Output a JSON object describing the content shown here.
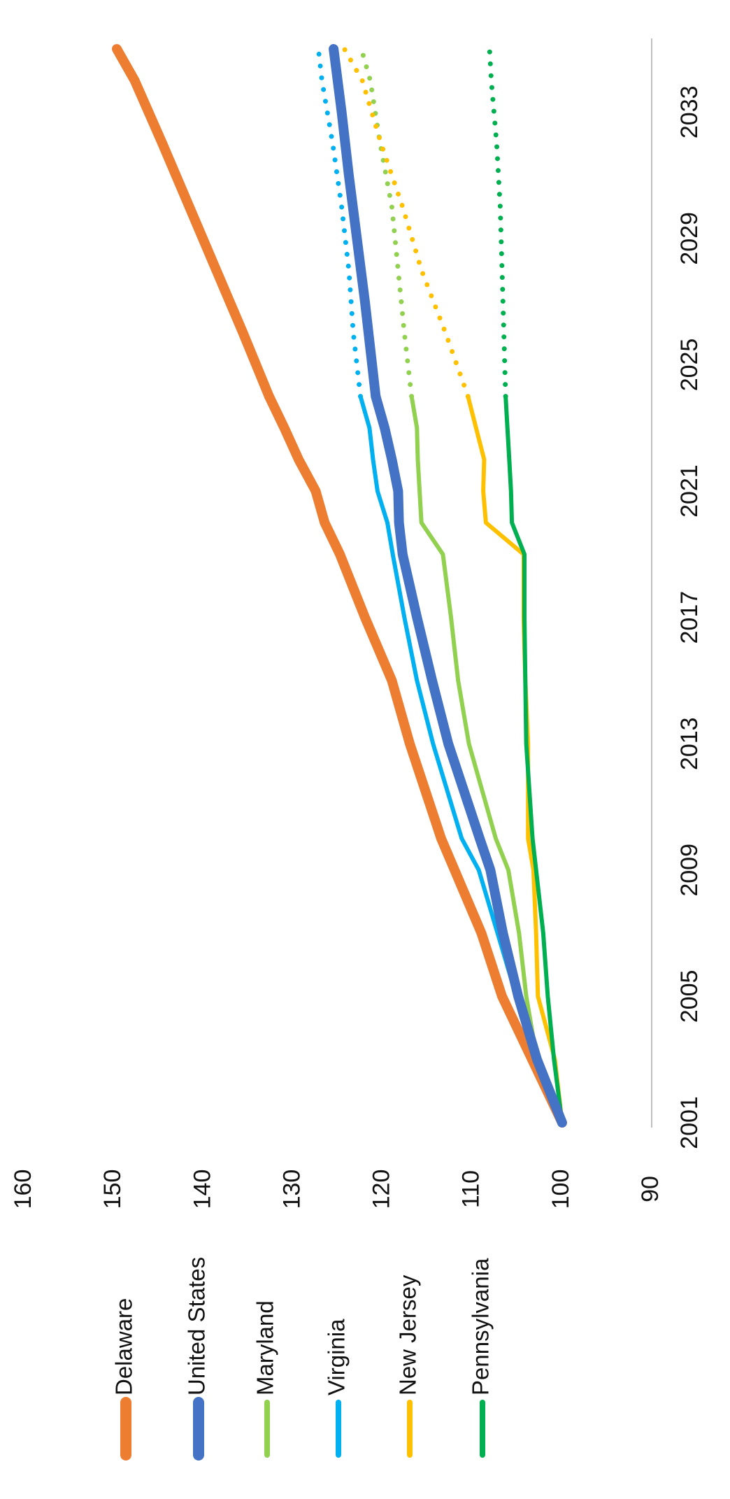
{
  "chart_data": {
    "type": "line",
    "title": "",
    "xlabel": "",
    "ylabel": "",
    "orientation": "rotated-90-clockwise",
    "xlim": [
      2001,
      2035
    ],
    "ylim": [
      90,
      160
    ],
    "x_ticks": [
      2001,
      2005,
      2009,
      2013,
      2017,
      2021,
      2025,
      2029,
      2033
    ],
    "y_ticks": [
      90,
      100,
      110,
      120,
      130,
      140,
      150,
      160
    ],
    "grid": false,
    "legend": {
      "placement": "left"
    },
    "series": [
      {
        "name": "Delaware",
        "color": "#ED7D31",
        "style": "thick",
        "actual": [
          [
            2001,
            100
          ],
          [
            2005,
            106.7
          ],
          [
            2007,
            109
          ],
          [
            2009,
            112
          ],
          [
            2010,
            113.5
          ],
          [
            2013,
            117
          ],
          [
            2015,
            119
          ],
          [
            2017,
            122
          ],
          [
            2019,
            124.8
          ],
          [
            2020,
            126.5
          ],
          [
            2021,
            127.5
          ],
          [
            2022,
            129.4
          ],
          [
            2023,
            131
          ],
          [
            2024,
            132.7
          ]
        ],
        "projection": [
          [
            2024,
            132.7
          ],
          [
            2026,
            135.6
          ],
          [
            2028,
            138.6
          ],
          [
            2030,
            141.6
          ],
          [
            2032,
            144.6
          ],
          [
            2034,
            147.7
          ],
          [
            2035,
            149.7
          ]
        ],
        "projection_style": "solid"
      },
      {
        "name": "United States",
        "color": "#4472C4",
        "style": "thick",
        "actual": [
          [
            2001,
            100
          ],
          [
            2003,
            102.8
          ],
          [
            2005,
            104.9
          ],
          [
            2007,
            106.6
          ],
          [
            2009,
            108
          ],
          [
            2010,
            109.2
          ],
          [
            2013,
            112.7
          ],
          [
            2015,
            114.5
          ],
          [
            2017,
            116.2
          ],
          [
            2019,
            117.8
          ],
          [
            2020,
            118.2
          ],
          [
            2021,
            118.3
          ],
          [
            2022,
            119
          ],
          [
            2023,
            119.8
          ],
          [
            2024,
            120.8
          ]
        ],
        "projection": [
          [
            2024,
            120.8
          ],
          [
            2025,
            121.2
          ],
          [
            2027,
            122
          ],
          [
            2029,
            122.9
          ],
          [
            2031,
            123.8
          ],
          [
            2033,
            124.6
          ],
          [
            2035,
            125.5
          ]
        ],
        "projection_style": "solid"
      },
      {
        "name": "Maryland",
        "color": "#92D050",
        "style": "thin",
        "actual": [
          [
            2001,
            100
          ],
          [
            2003,
            102.8
          ],
          [
            2005,
            104
          ],
          [
            2007,
            104.8
          ],
          [
            2009,
            106
          ],
          [
            2010,
            107.4
          ],
          [
            2013,
            110.4
          ],
          [
            2015,
            111.6
          ],
          [
            2017,
            112.4
          ],
          [
            2019,
            113.3
          ],
          [
            2020,
            115.7
          ],
          [
            2021,
            115.9
          ],
          [
            2022,
            116.1
          ],
          [
            2023,
            116.2
          ],
          [
            2024,
            116.8
          ]
        ],
        "projection": [
          [
            2024,
            116.8
          ],
          [
            2026,
            117.6
          ],
          [
            2028,
            118.3
          ],
          [
            2030,
            119
          ],
          [
            2032,
            120.3
          ],
          [
            2034,
            121.4
          ],
          [
            2035,
            122.4
          ]
        ],
        "projection_style": "dotted"
      },
      {
        "name": "Virginia",
        "color": "#00B0F0",
        "style": "thin",
        "actual": [
          [
            2001,
            100
          ],
          [
            2003,
            102.9
          ],
          [
            2005,
            105.1
          ],
          [
            2007,
            107.2
          ],
          [
            2009,
            109.3
          ],
          [
            2010,
            111.2
          ],
          [
            2013,
            114.4
          ],
          [
            2015,
            116.2
          ],
          [
            2017,
            117.6
          ],
          [
            2019,
            118.9
          ],
          [
            2020,
            119.5
          ],
          [
            2021,
            120.6
          ],
          [
            2022,
            121.1
          ],
          [
            2023,
            121.5
          ],
          [
            2024,
            122.5
          ]
        ],
        "projection": [
          [
            2024,
            122.5
          ],
          [
            2026,
            123.3
          ],
          [
            2028,
            123.8
          ],
          [
            2030,
            124.6
          ],
          [
            2032,
            125.6
          ],
          [
            2034,
            126.8
          ],
          [
            2035,
            127.2
          ]
        ],
        "projection_style": "dotted"
      },
      {
        "name": "New Jersey",
        "color": "#FFC000",
        "style": "thin",
        "actual": [
          [
            2001,
            100
          ],
          [
            2003,
            100.8
          ],
          [
            2005,
            102.7
          ],
          [
            2007,
            102.9
          ],
          [
            2009,
            103.2
          ],
          [
            2010,
            103.8
          ],
          [
            2013,
            103.8
          ],
          [
            2015,
            104.1
          ],
          [
            2017,
            104.3
          ],
          [
            2019,
            104.3
          ],
          [
            2020,
            108.5
          ],
          [
            2021,
            108.8
          ],
          [
            2022,
            108.7
          ],
          [
            2023,
            109.6
          ],
          [
            2024,
            110.5
          ]
        ],
        "projection": [
          [
            2024,
            110.5
          ],
          [
            2026,
            113
          ],
          [
            2028,
            115.7
          ],
          [
            2030,
            117.8
          ],
          [
            2032,
            120.2
          ],
          [
            2034,
            122.3
          ],
          [
            2035,
            124.3
          ]
        ],
        "projection_style": "dotted"
      },
      {
        "name": "Pennsylvania",
        "color": "#00B050",
        "style": "thin",
        "actual": [
          [
            2001,
            100
          ],
          [
            2003,
            100.9
          ],
          [
            2005,
            101.6
          ],
          [
            2007,
            102.1
          ],
          [
            2009,
            102.9
          ],
          [
            2010,
            103.3
          ],
          [
            2013,
            104
          ],
          [
            2015,
            104.1
          ],
          [
            2017,
            104.2
          ],
          [
            2019,
            104.2
          ],
          [
            2020,
            105.6
          ],
          [
            2021,
            105.7
          ],
          [
            2022,
            105.9
          ],
          [
            2023,
            106.1
          ],
          [
            2024,
            106.3
          ]
        ],
        "projection": [
          [
            2024,
            106.3
          ],
          [
            2026,
            106.5
          ],
          [
            2028,
            106.7
          ],
          [
            2030,
            106.9
          ],
          [
            2032,
            107.3
          ],
          [
            2034,
            107.9
          ],
          [
            2035,
            108.1
          ]
        ],
        "projection_style": "dotted"
      }
    ]
  }
}
